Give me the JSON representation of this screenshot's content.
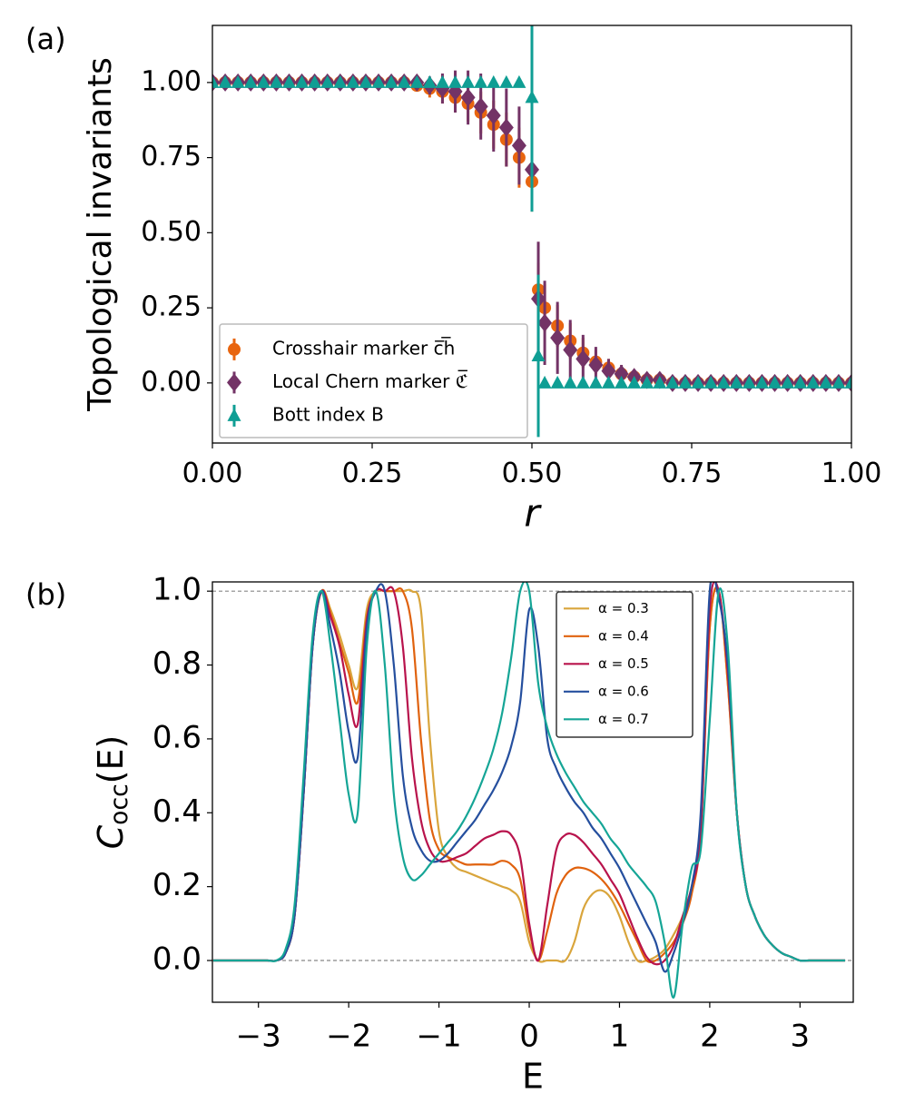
{
  "chart_data": [
    {
      "type": "scatter",
      "panel_label": "(a)",
      "xlabel": "r",
      "ylabel": "Topological invariants",
      "xlim": [
        0,
        1
      ],
      "ylim": [
        -0.2,
        1.19
      ],
      "xticks": [
        {
          "value": 0,
          "label": "0.00"
        },
        {
          "value": 0.25,
          "label": "0.25"
        },
        {
          "value": 0.5,
          "label": "0.50"
        },
        {
          "value": 0.75,
          "label": "0.75"
        },
        {
          "value": 1,
          "label": "1.00"
        }
      ],
      "yticks": [
        {
          "value": 0,
          "label": "0.00"
        },
        {
          "value": 0.25,
          "label": "0.25"
        },
        {
          "value": 0.5,
          "label": "0.50"
        },
        {
          "value": 0.75,
          "label": "0.75"
        },
        {
          "value": 1,
          "label": "1.00"
        }
      ],
      "legend": "lower left",
      "grid": false,
      "x": [
        0,
        0.02,
        0.04,
        0.06,
        0.08,
        0.1,
        0.12,
        0.14,
        0.16,
        0.18,
        0.2,
        0.22,
        0.24,
        0.26,
        0.28,
        0.3,
        0.32,
        0.34,
        0.36,
        0.38,
        0.4,
        0.42,
        0.44,
        0.46,
        0.48,
        0.5,
        0.51,
        0.52,
        0.54,
        0.56,
        0.58,
        0.6,
        0.62,
        0.64,
        0.66,
        0.68,
        0.7,
        0.72,
        0.74,
        0.76,
        0.78,
        0.8,
        0.82,
        0.84,
        0.86,
        0.88,
        0.9,
        0.92,
        0.94,
        0.96,
        0.98,
        1.0
      ],
      "series": [
        {
          "name": "Crosshair marker c̅h̅",
          "color": "#e8650f",
          "marker": "circle",
          "values": [
            1,
            1,
            1,
            1,
            1,
            1,
            1,
            1,
            1,
            1,
            1,
            1,
            1,
            1,
            1,
            1,
            0.99,
            0.98,
            0.97,
            0.95,
            0.93,
            0.9,
            0.86,
            0.81,
            0.75,
            0.67,
            0.31,
            0.25,
            0.19,
            0.14,
            0.1,
            0.07,
            0.05,
            0.03,
            0.02,
            0.01,
            0.01,
            0,
            0,
            0,
            0,
            0,
            0,
            0,
            0,
            0,
            0,
            0,
            0,
            0,
            0,
            0
          ],
          "errors": [
            0.01,
            0.01,
            0.01,
            0.01,
            0.01,
            0.01,
            0.01,
            0.01,
            0.01,
            0.01,
            0.01,
            0.01,
            0.01,
            0.01,
            0.01,
            0.01,
            0.02,
            0.03,
            0.04,
            0.05,
            0.06,
            0.07,
            0.08,
            0.09,
            0.1,
            0.1,
            0.09,
            0.08,
            0.07,
            0.06,
            0.05,
            0.04,
            0.03,
            0.02,
            0.02,
            0.01,
            0.01,
            0.01,
            0.01,
            0.01,
            0.01,
            0.01,
            0.01,
            0.01,
            0.01,
            0.01,
            0.01,
            0.01,
            0.01,
            0.01,
            0.01,
            0.01
          ]
        },
        {
          "name": "Local Chern marker ℭ̅",
          "color": "#733366",
          "marker": "diamond",
          "values": [
            1,
            1,
            1,
            1,
            1,
            1,
            1,
            1,
            1,
            1,
            1,
            1,
            1,
            1,
            1,
            1,
            1,
            0.99,
            0.98,
            0.97,
            0.95,
            0.92,
            0.89,
            0.85,
            0.79,
            0.71,
            0.28,
            0.2,
            0.15,
            0.11,
            0.08,
            0.06,
            0.04,
            0.03,
            0.02,
            0.01,
            0.01,
            0,
            0,
            0,
            0,
            0,
            0,
            0,
            0,
            0,
            0,
            0,
            0,
            0,
            0,
            0
          ],
          "errors": [
            0.01,
            0.01,
            0.01,
            0.01,
            0.01,
            0.01,
            0.01,
            0.01,
            0.01,
            0.01,
            0.01,
            0.01,
            0.01,
            0.01,
            0.01,
            0.01,
            0.02,
            0.03,
            0.05,
            0.07,
            0.09,
            0.11,
            0.12,
            0.13,
            0.13,
            0.12,
            0.19,
            0.14,
            0.12,
            0.1,
            0.08,
            0.06,
            0.04,
            0.03,
            0.02,
            0.01,
            0.01,
            0.01,
            0.01,
            0.01,
            0.01,
            0.01,
            0.01,
            0.01,
            0.01,
            0.01,
            0.01,
            0.01,
            0.01,
            0.01,
            0.01,
            0.01
          ]
        },
        {
          "name": "Bott index B",
          "color": "#0f9e94",
          "marker": "triangle",
          "values": [
            1,
            1,
            1,
            1,
            1,
            1,
            1,
            1,
            1,
            1,
            1,
            1,
            1,
            1,
            1,
            1,
            1,
            1,
            1,
            1,
            1,
            1,
            1,
            1,
            1,
            0.95,
            0.09,
            0,
            0,
            0,
            0,
            0,
            0,
            0,
            0,
            0,
            0,
            0,
            0,
            0,
            0,
            0,
            0,
            0,
            0,
            0,
            0,
            0,
            0,
            0,
            0,
            0
          ],
          "errors": [
            0,
            0,
            0,
            0,
            0,
            0,
            0,
            0,
            0,
            0,
            0,
            0,
            0,
            0,
            0,
            0,
            0,
            0,
            0,
            0,
            0,
            0,
            0,
            0,
            0,
            0.38,
            0.27,
            0,
            0,
            0,
            0,
            0,
            0,
            0,
            0,
            0,
            0,
            0,
            0,
            0,
            0,
            0,
            0,
            0,
            0,
            0,
            0,
            0,
            0,
            0,
            0,
            0
          ]
        }
      ]
    },
    {
      "type": "line",
      "panel_label": "(b)",
      "xlabel": "E",
      "ylabel": [
        "C",
        "occ",
        "(E)"
      ],
      "xlim": [
        -3.51,
        3.59
      ],
      "ylim": [
        -0.113,
        1.025
      ],
      "xticks": [
        {
          "value": -3,
          "label": "−3"
        },
        {
          "value": -2,
          "label": "−2"
        },
        {
          "value": -1,
          "label": "−1"
        },
        0,
        1,
        2,
        3
      ],
      "yticks": [
        {
          "value": 0,
          "label": "0.0"
        },
        0.2,
        0.4,
        0.6,
        0.8,
        {
          "value": 1,
          "label": "1.0"
        }
      ],
      "reference_lines": [
        1,
        0
      ],
      "legend": "upper right",
      "grid": false,
      "x": [
        -3.5,
        -3.4,
        -3.3,
        -3.2,
        -3.1,
        -3.0,
        -2.9,
        -2.8,
        -2.7,
        -2.6,
        -2.5,
        -2.4,
        -2.3,
        -2.2,
        -2.1,
        -2.0,
        -1.9,
        -1.8,
        -1.7,
        -1.6,
        -1.5,
        -1.4,
        -1.3,
        -1.2,
        -1.1,
        -1.0,
        -0.9,
        -0.8,
        -0.7,
        -0.6,
        -0.5,
        -0.4,
        -0.3,
        -0.2,
        -0.1,
        0,
        0.1,
        0.2,
        0.3,
        0.4,
        0.5,
        0.6,
        0.7,
        0.8,
        0.9,
        1.0,
        1.1,
        1.2,
        1.3,
        1.4,
        1.5,
        1.6,
        1.7,
        1.8,
        1.9,
        2.0,
        2.1,
        2.2,
        2.3,
        2.4,
        2.5,
        2.6,
        2.7,
        2.8,
        2.9,
        3.0,
        3.1,
        3.2,
        3.3,
        3.4,
        3.5
      ],
      "series": [
        {
          "name": "α = 0.3",
          "color": "#d9a53c",
          "values": [
            0,
            0,
            0,
            0,
            0,
            0,
            0,
            0,
            0.02,
            0.12,
            0.45,
            0.85,
            1.0,
            0.95,
            0.88,
            0.8,
            0.74,
            0.95,
            1,
            1,
            1,
            1,
            1,
            0.95,
            0.6,
            0.35,
            0.28,
            0.25,
            0.24,
            0.23,
            0.22,
            0.21,
            0.2,
            0.19,
            0.16,
            0.05,
            0,
            0,
            0,
            0,
            0.05,
            0.14,
            0.18,
            0.19,
            0.17,
            0.12,
            0.05,
            0,
            0,
            0.01,
            0.03,
            0.07,
            0.12,
            0.2,
            0.35,
            0.9,
            1.0,
            0.75,
            0.4,
            0.2,
            0.12,
            0.07,
            0.04,
            0.02,
            0.01,
            0,
            0,
            0,
            0,
            0,
            0
          ]
        },
        {
          "name": "α = 0.4",
          "color": "#e0620e",
          "values": [
            0,
            0,
            0,
            0,
            0,
            0,
            0,
            0,
            0.02,
            0.12,
            0.45,
            0.85,
            1.0,
            0.94,
            0.86,
            0.78,
            0.7,
            0.93,
            1,
            1,
            1,
            1,
            0.9,
            0.6,
            0.38,
            0.3,
            0.28,
            0.27,
            0.26,
            0.26,
            0.26,
            0.26,
            0.27,
            0.26,
            0.22,
            0.08,
            0,
            0.08,
            0.18,
            0.23,
            0.25,
            0.25,
            0.24,
            0.22,
            0.19,
            0.15,
            0.1,
            0.05,
            0,
            0,
            0.02,
            0.05,
            0.1,
            0.18,
            0.35,
            0.9,
            1.0,
            0.75,
            0.4,
            0.2,
            0.12,
            0.07,
            0.04,
            0.02,
            0.01,
            0,
            0,
            0,
            0,
            0,
            0
          ]
        },
        {
          "name": "α = 0.5",
          "color": "#b8134c",
          "values": [
            0,
            0,
            0,
            0,
            0,
            0,
            0,
            0,
            0.02,
            0.12,
            0.45,
            0.85,
            1.0,
            0.93,
            0.85,
            0.72,
            0.64,
            0.92,
            1,
            1,
            1,
            0.85,
            0.55,
            0.38,
            0.3,
            0.27,
            0.27,
            0.28,
            0.29,
            0.31,
            0.33,
            0.34,
            0.35,
            0.34,
            0.28,
            0.1,
            0,
            0.15,
            0.3,
            0.34,
            0.34,
            0.32,
            0.29,
            0.26,
            0.22,
            0.18,
            0.12,
            0.06,
            0.01,
            -0.01,
            0,
            0.04,
            0.12,
            0.2,
            0.35,
            0.95,
            1.0,
            0.78,
            0.4,
            0.2,
            0.12,
            0.07,
            0.04,
            0.02,
            0.01,
            0,
            0,
            0,
            0,
            0,
            0
          ]
        },
        {
          "name": "α = 0.6",
          "color": "#254f9e",
          "values": [
            0,
            0,
            0,
            0,
            0,
            0,
            0,
            0,
            0.02,
            0.12,
            0.45,
            0.85,
            1.0,
            0.9,
            0.78,
            0.62,
            0.55,
            0.9,
            1,
            1,
            0.8,
            0.5,
            0.36,
            0.3,
            0.27,
            0.27,
            0.29,
            0.32,
            0.35,
            0.38,
            0.42,
            0.46,
            0.51,
            0.58,
            0.7,
            0.95,
            0.85,
            0.6,
            0.52,
            0.47,
            0.43,
            0.4,
            0.36,
            0.33,
            0.29,
            0.25,
            0.2,
            0.15,
            0.1,
            0.05,
            -0.03,
            0.02,
            0.1,
            0.2,
            0.4,
            1.0,
            0.98,
            0.8,
            0.4,
            0.2,
            0.12,
            0.07,
            0.04,
            0.02,
            0.01,
            0,
            0,
            0,
            0,
            0,
            0
          ]
        },
        {
          "name": "α = 0.7",
          "color": "#15a596",
          "values": [
            0,
            0,
            0,
            0,
            0,
            0,
            0,
            0,
            0.03,
            0.15,
            0.5,
            0.88,
            1.0,
            0.85,
            0.65,
            0.45,
            0.4,
            0.85,
            1,
            0.8,
            0.45,
            0.28,
            0.22,
            0.23,
            0.26,
            0.29,
            0.32,
            0.35,
            0.39,
            0.44,
            0.5,
            0.57,
            0.67,
            0.82,
            1.0,
            1.0,
            0.75,
            0.63,
            0.56,
            0.51,
            0.47,
            0.43,
            0.4,
            0.37,
            0.33,
            0.3,
            0.26,
            0.23,
            0.2,
            0.16,
            0.05,
            -0.1,
            0.1,
            0.25,
            0.3,
            0.65,
            1.0,
            0.85,
            0.4,
            0.2,
            0.12,
            0.07,
            0.04,
            0.02,
            0.01,
            0,
            0,
            0,
            0,
            0,
            0
          ]
        }
      ]
    }
  ]
}
